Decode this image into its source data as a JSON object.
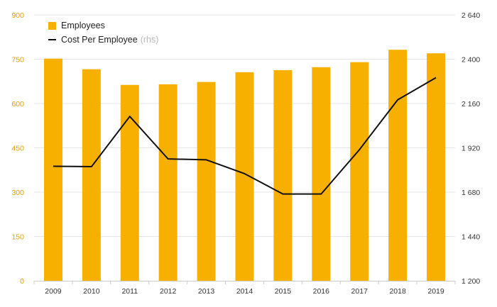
{
  "colors": {
    "bar": "#f8b000",
    "line": "#111111",
    "left_axis_text": "#e0a100",
    "axis_text": "#333333",
    "grid": "#e6e6e6"
  },
  "legend": {
    "bars_label": "Employees",
    "line_label": "Cost Per Employee",
    "line_note": "(rhs)"
  },
  "chart_data": {
    "type": "bar",
    "categories": [
      "2009",
      "2010",
      "2011",
      "2012",
      "2013",
      "2014",
      "2015",
      "2016",
      "2017",
      "2018",
      "2019"
    ],
    "series": [
      {
        "name": "Employees",
        "type": "bar",
        "axis": "left",
        "values": [
          752,
          716,
          663,
          665,
          673,
          706,
          713,
          723,
          740,
          782,
          770
        ]
      },
      {
        "name": "Cost Per Employee",
        "type": "line",
        "axis": "right",
        "values": [
          1820,
          1818,
          2090,
          1860,
          1855,
          1780,
          1670,
          1670,
          1910,
          2180,
          2300
        ]
      }
    ],
    "y_left": {
      "min": 0,
      "max": 900,
      "ticks": [
        "0",
        "150",
        "300",
        "450",
        "600",
        "750",
        "900"
      ]
    },
    "y_right": {
      "min": 1200,
      "max": 2640,
      "ticks": [
        "1 200",
        "1 440",
        "1 680",
        "1 920",
        "2 160",
        "2 400",
        "2 640"
      ]
    },
    "grid": true,
    "legend_position": "top-left"
  }
}
